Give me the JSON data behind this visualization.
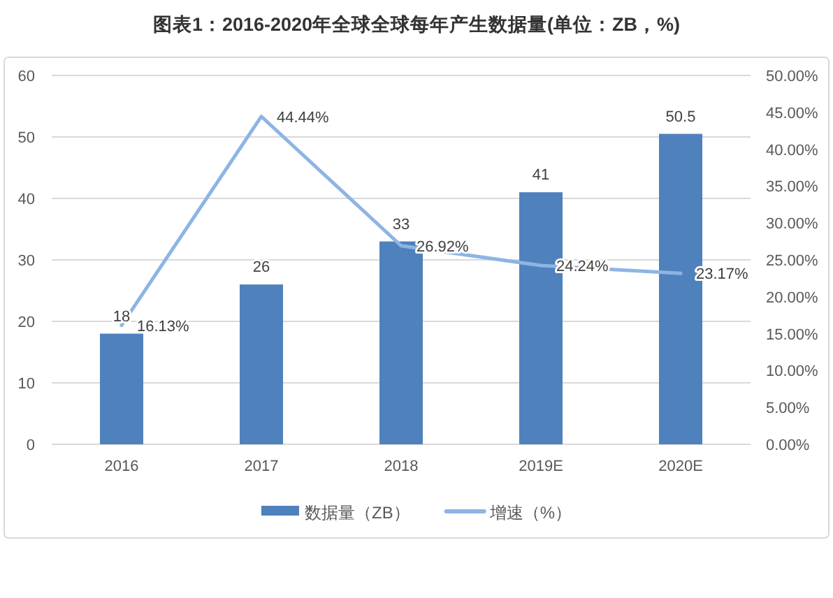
{
  "chart_data": {
    "type": "bar",
    "title": "图表1：2016-2020年全球全球每年产生数据量(单位：ZB，%)",
    "categories": [
      "2016",
      "2017",
      "2018",
      "2019E",
      "2020E"
    ],
    "series": [
      {
        "name": "数据量（ZB）",
        "color": "#4f81bd",
        "values": [
          18,
          26,
          33,
          41,
          50.5
        ],
        "value_labels": [
          "18",
          "26",
          "33",
          "41",
          "50.5"
        ]
      },
      {
        "name": "增速（%）",
        "type": "line",
        "axis": "y2",
        "color": "#8eb4e3",
        "values": [
          16.13,
          44.44,
          26.92,
          24.24,
          23.17
        ],
        "value_labels": [
          "16.13%",
          "44.44%",
          "26.92%",
          "24.24%",
          "23.17%"
        ]
      }
    ],
    "ylim": [
      0,
      60
    ],
    "yticks": [
      0,
      10,
      20,
      30,
      40,
      50,
      60
    ],
    "y2lim": [
      0,
      50
    ],
    "y2ticks": [
      {
        "value": 0,
        "label": "0.00%"
      },
      {
        "value": 5,
        "label": "5.00%"
      },
      {
        "value": 10,
        "label": "10.00%"
      },
      {
        "value": 15,
        "label": "15.00%"
      },
      {
        "value": 20,
        "label": "20.00%"
      },
      {
        "value": 25,
        "label": "25.00%"
      },
      {
        "value": 30,
        "label": "30.00%"
      },
      {
        "value": 35,
        "label": "35.00%"
      },
      {
        "value": 40,
        "label": "40.00%"
      },
      {
        "value": 45,
        "label": "45.00%"
      },
      {
        "value": 50,
        "label": "50.00%"
      }
    ],
    "grid": "y",
    "legend": "bottom"
  }
}
